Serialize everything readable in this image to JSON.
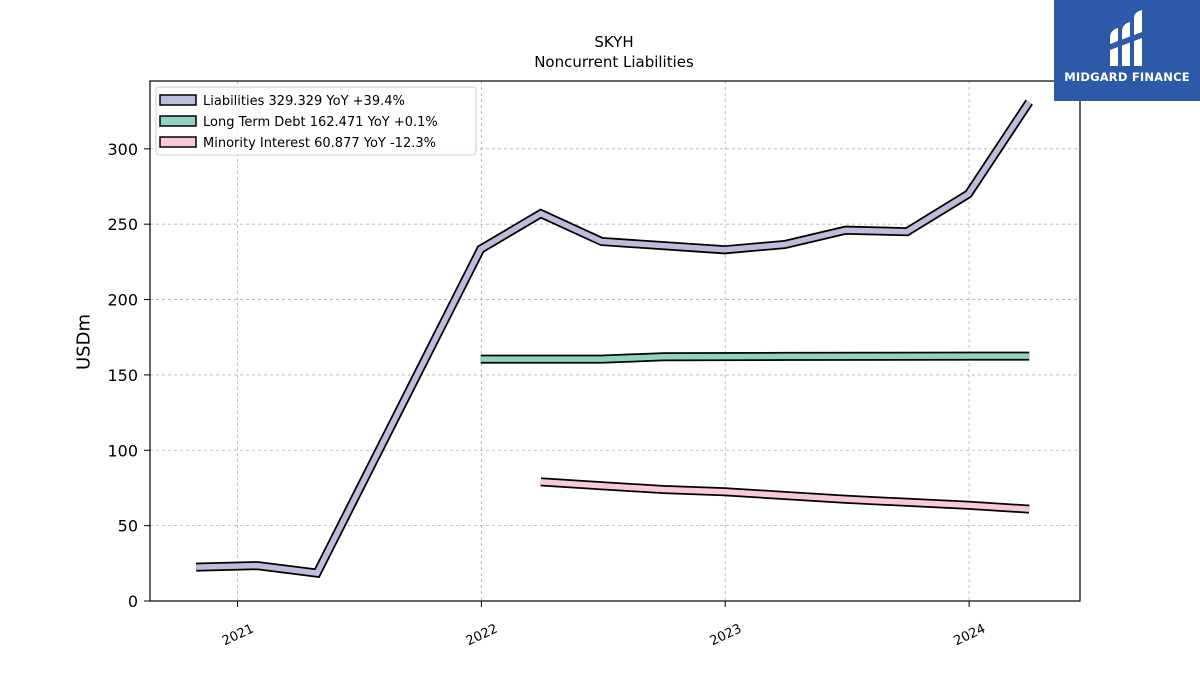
{
  "brand": {
    "name": "MIDGARD FINANCE",
    "bg_color": "#2d5aa8"
  },
  "chart_data": {
    "type": "line",
    "title": "SKYH",
    "subtitle": "Noncurrent  Liabilities",
    "xlabel": "",
    "ylabel": "USDm",
    "ylim": [
      0,
      345
    ],
    "yticks": [
      0,
      50,
      100,
      150,
      200,
      250,
      300
    ],
    "xlim": [
      "2020-08-23",
      "2024-06-15"
    ],
    "xticks": [
      "2021",
      "2022",
      "2023",
      "2024"
    ],
    "grid": true,
    "legend_position": "top-left",
    "series": [
      {
        "name": "Liabilities",
        "legend": "Liabilities  329.329 YoY +39.4%",
        "color": "#bcbddc",
        "points": [
          [
            "2020-10-31",
            22.5
          ],
          [
            "2021-01-31",
            23.5
          ],
          [
            "2021-04-30",
            18.5
          ],
          [
            "2021-12-31",
            233.5
          ],
          [
            "2022-03-31",
            257.0
          ],
          [
            "2022-06-30",
            238.5
          ],
          [
            "2022-12-31",
            233.0
          ],
          [
            "2023-03-31",
            236.5
          ],
          [
            "2023-06-30",
            246.0
          ],
          [
            "2023-09-30",
            245.0
          ],
          [
            "2023-12-31",
            270.0
          ],
          [
            "2024-03-31",
            331.0
          ]
        ]
      },
      {
        "name": "Long Term Debt",
        "legend": "Long Term Debt  162.471 YoY +0.1%",
        "color": "#8fd3c3",
        "points": [
          [
            "2021-12-31",
            160.5
          ],
          [
            "2022-06-30",
            160.5
          ],
          [
            "2022-09-30",
            162.0
          ],
          [
            "2023-03-31",
            162.3
          ],
          [
            "2023-12-31",
            162.5
          ],
          [
            "2024-03-31",
            162.5
          ]
        ]
      },
      {
        "name": "Minority Interest",
        "legend": "Minority Interest  60.877 YoY -12.3%",
        "color": "#f9c8dc",
        "points": [
          [
            "2022-03-31",
            79.0
          ],
          [
            "2022-06-30",
            76.5
          ],
          [
            "2022-09-30",
            74.0
          ],
          [
            "2022-12-31",
            72.5
          ],
          [
            "2023-03-31",
            70.0
          ],
          [
            "2023-06-30",
            67.5
          ],
          [
            "2023-09-30",
            65.5
          ],
          [
            "2023-12-31",
            63.5
          ],
          [
            "2024-03-31",
            61.0
          ]
        ]
      }
    ]
  }
}
